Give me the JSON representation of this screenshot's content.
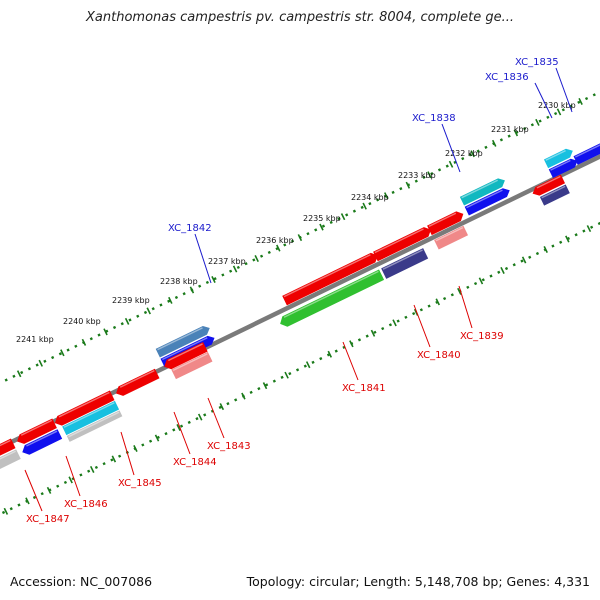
{
  "title": "Xanthomonas campestris pv. campestris str. 8004, complete ge...",
  "footer": {
    "accession": "Accession: NC_007086",
    "summary": "Topology: circular; Length: 5,148,708 bp; Genes: 4,331"
  },
  "colors": {
    "backbone": "#7a7a7a",
    "ticks": "#1a7a1a",
    "label_forward": "#1a1acc",
    "label_reverse": "#dd0000",
    "red": "#ee0000",
    "blue": "#1010ee",
    "cyan": "#18c0e0",
    "teal": "#10b8c0",
    "steelblue": "#4a82b8",
    "navy": "#3a3a8a",
    "pink": "#f08888",
    "gray": "#c0c0c0",
    "green": "#30c030"
  },
  "kbp_labels": [
    "2230 kbp",
    "2231 kbp",
    "2232 kbp",
    "2233 kbp",
    "2234 kbp",
    "2235 kbp",
    "2236 kbp",
    "2237 kbp",
    "2238 kbp",
    "2239 kbp",
    "2240 kbp",
    "2241 kbp"
  ],
  "genes": [
    {
      "name": "XC_1835",
      "strand": "forward"
    },
    {
      "name": "XC_1836",
      "strand": "forward"
    },
    {
      "name": "XC_1838",
      "strand": "forward"
    },
    {
      "name": "XC_1842",
      "strand": "forward"
    },
    {
      "name": "XC_1839",
      "strand": "reverse"
    },
    {
      "name": "XC_1840",
      "strand": "reverse"
    },
    {
      "name": "XC_1841",
      "strand": "reverse"
    },
    {
      "name": "XC_1843",
      "strand": "reverse"
    },
    {
      "name": "XC_1844",
      "strand": "reverse"
    },
    {
      "name": "XC_1845",
      "strand": "reverse"
    },
    {
      "name": "XC_1846",
      "strand": "reverse"
    },
    {
      "name": "XC_1847",
      "strand": "reverse"
    }
  ]
}
